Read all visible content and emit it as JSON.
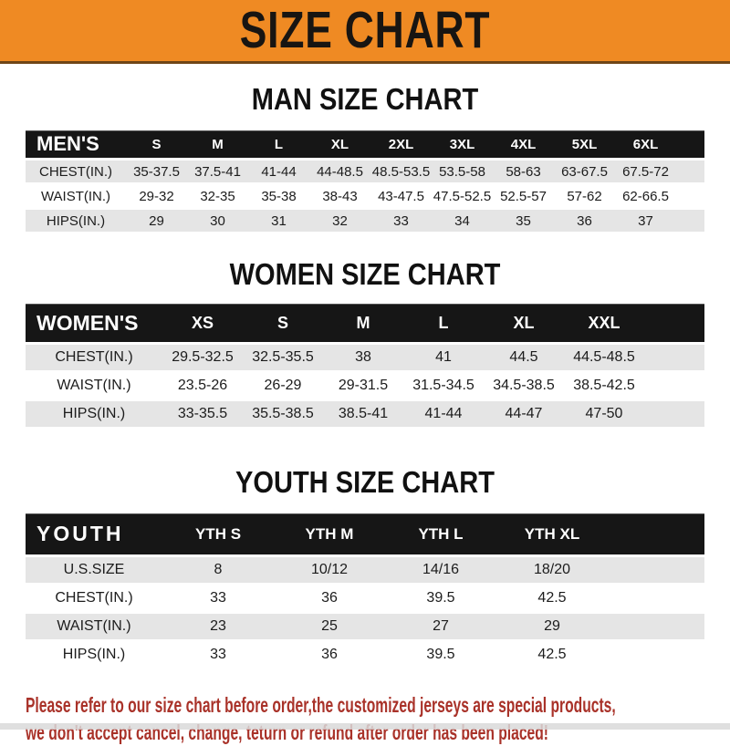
{
  "banner": {
    "title": "SIZE CHART",
    "bg_color": "#ef8a23",
    "text_color": "#181512"
  },
  "sections": [
    {
      "title": "MAN SIZE CHART",
      "header": {
        "label": "MEN'S",
        "sizes": [
          "S",
          "M",
          "L",
          "XL",
          "2XL",
          "3XL",
          "4XL",
          "5XL",
          "6XL"
        ]
      },
      "rows": [
        {
          "label": "CHEST(IN.)",
          "values": [
            "35-37.5",
            "37.5-41",
            "41-44",
            "44-48.5",
            "48.5-53.5",
            "53.5-58",
            "58-63",
            "63-67.5",
            "67.5-72"
          ]
        },
        {
          "label": "WAIST(IN.)",
          "values": [
            "29-32",
            "32-35",
            "35-38",
            "38-43",
            "43-47.5",
            "47.5-52.5",
            "52.5-57",
            "57-62",
            "62-66.5"
          ]
        },
        {
          "label": "HIPS(IN.)",
          "values": [
            "29",
            "30",
            "31",
            "32",
            "33",
            "34",
            "35",
            "36",
            "37"
          ]
        }
      ]
    },
    {
      "title": "WOMEN SIZE CHART",
      "header": {
        "label": "WOMEN'S",
        "sizes": [
          "XS",
          "S",
          "M",
          "L",
          "XL",
          "XXL"
        ]
      },
      "rows": [
        {
          "label": "CHEST(IN.)",
          "values": [
            "29.5-32.5",
            "32.5-35.5",
            "38",
            "41",
            "44.5",
            "44.5-48.5"
          ]
        },
        {
          "label": "WAIST(IN.)",
          "values": [
            "23.5-26",
            "26-29",
            "29-31.5",
            "31.5-34.5",
            "34.5-38.5",
            "38.5-42.5"
          ]
        },
        {
          "label": "HIPS(IN.)",
          "values": [
            "33-35.5",
            "35.5-38.5",
            "38.5-41",
            "41-44",
            "44-47",
            "47-50"
          ]
        }
      ]
    },
    {
      "title": "YOUTH SIZE CHART",
      "header": {
        "label": "YOUTH",
        "sizes": [
          "YTH S",
          "YTH M",
          "YTH L",
          "YTH XL"
        ]
      },
      "rows": [
        {
          "label": "U.S.SIZE",
          "values": [
            "8",
            "10/12",
            "14/16",
            "18/20"
          ]
        },
        {
          "label": "CHEST(IN.)",
          "values": [
            "33",
            "36",
            "39.5",
            "42.5"
          ]
        },
        {
          "label": "WAIST(IN.)",
          "values": [
            "23",
            "25",
            "27",
            "29"
          ]
        },
        {
          "label": "HIPS(IN.)",
          "values": [
            "33",
            "36",
            "39.5",
            "42.5"
          ]
        }
      ]
    }
  ],
  "footer": {
    "line1": "Please refer to our size chart before order,the customized jerseys are special products,",
    "line2": "we don't accept cancel, change, teturn or refund after order has been placed!",
    "text_color": "#a93229"
  },
  "table_colors": {
    "header_bar_bg": "#161616",
    "header_bar_text": "#ffffff",
    "stripe_row_bg": "#e5e5e5"
  }
}
